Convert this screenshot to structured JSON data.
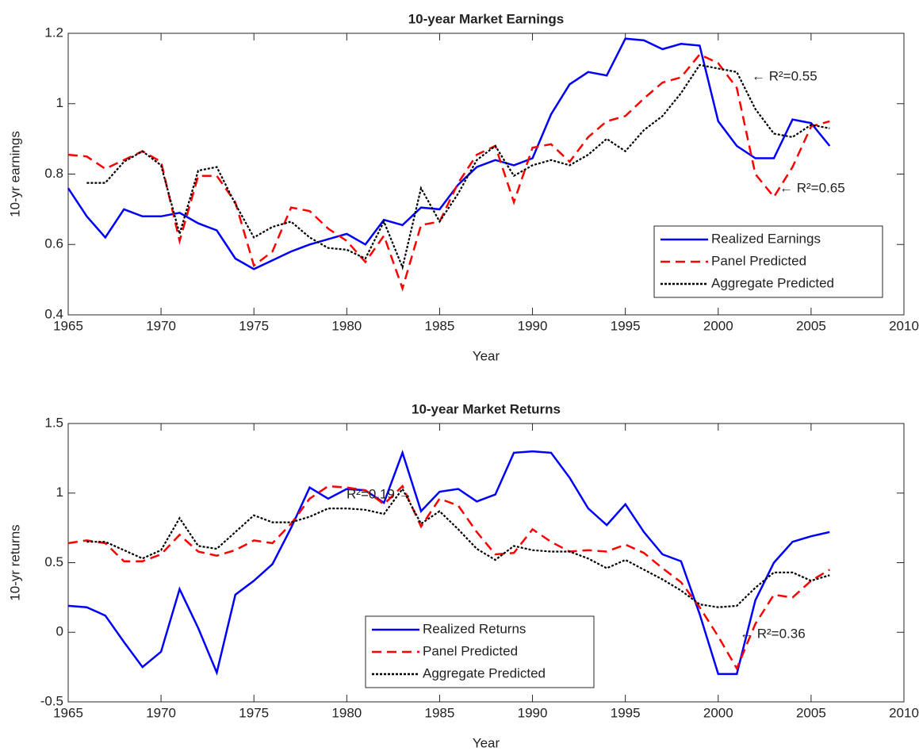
{
  "chart_data": [
    {
      "type": "line",
      "title": "10-year Market Earnings",
      "x_label": "Year",
      "y_label": "10-yr earnings",
      "x": [
        1965,
        1966,
        1967,
        1968,
        1969,
        1970,
        1971,
        1972,
        1973,
        1974,
        1975,
        1976,
        1977,
        1978,
        1979,
        1980,
        1981,
        1982,
        1983,
        1984,
        1985,
        1986,
        1987,
        1988,
        1989,
        1990,
        1991,
        1992,
        1993,
        1994,
        1995,
        1996,
        1997,
        1998,
        1999,
        2000,
        2001,
        2002,
        2003,
        2004,
        2005,
        2006
      ],
      "series": [
        {
          "name": "Realized Earnings",
          "color": "#0000ff",
          "line_style": "solid",
          "values": [
            0.76,
            0.68,
            0.62,
            0.7,
            0.68,
            0.68,
            0.69,
            0.66,
            0.64,
            0.56,
            0.53,
            0.555,
            0.58,
            0.6,
            0.615,
            0.63,
            0.6,
            0.67,
            0.655,
            0.705,
            0.7,
            0.77,
            0.82,
            0.84,
            0.825,
            0.845,
            0.97,
            1.055,
            1.09,
            1.08,
            1.185,
            1.18,
            1.155,
            1.17,
            1.165,
            0.95,
            0.88,
            0.845,
            0.845,
            0.955,
            0.945,
            0.88
          ]
        },
        {
          "name": "Panel Predicted",
          "color": "#ff0000",
          "line_style": "dashed",
          "values": [
            0.855,
            0.85,
            0.815,
            0.84,
            0.865,
            0.835,
            0.61,
            0.795,
            0.795,
            0.72,
            0.54,
            0.58,
            0.705,
            0.695,
            0.645,
            0.61,
            0.55,
            0.625,
            0.475,
            0.655,
            0.665,
            0.775,
            0.855,
            0.88,
            0.72,
            0.875,
            0.885,
            0.835,
            0.905,
            0.95,
            0.965,
            1.015,
            1.06,
            1.075,
            1.14,
            1.115,
            1.045,
            0.8,
            0.735,
            0.82,
            0.935,
            0.95
          ]
        },
        {
          "name": "Aggregate Predicted",
          "color": "#000000",
          "line_style": "dotted",
          "values": [
            null,
            0.775,
            0.775,
            0.835,
            0.865,
            0.825,
            0.63,
            0.81,
            0.82,
            0.715,
            0.62,
            0.65,
            0.665,
            0.62,
            0.59,
            0.585,
            0.56,
            0.665,
            0.535,
            0.76,
            0.665,
            0.745,
            0.84,
            0.88,
            0.795,
            0.825,
            0.84,
            0.825,
            0.855,
            0.9,
            0.865,
            0.925,
            0.965,
            1.03,
            1.11,
            1.1,
            1.09,
            0.985,
            0.915,
            0.905,
            0.94,
            0.93
          ]
        }
      ],
      "xlim": [
        1965,
        2010
      ],
      "xticks": [
        1965,
        1970,
        1975,
        1980,
        1985,
        1990,
        1995,
        2000,
        2005,
        2010
      ],
      "ylim": [
        0.4,
        1.2
      ],
      "yticks": [
        0.4,
        0.6,
        0.8,
        1,
        1.2
      ],
      "legend": "lower right",
      "annotations": [
        "← R²=0.55",
        "← R²=0.65"
      ]
    },
    {
      "type": "line",
      "title": "10-year Market Returns",
      "x_label": "Year",
      "y_label": "10-yr returns",
      "x": [
        1965,
        1966,
        1967,
        1968,
        1969,
        1970,
        1971,
        1972,
        1973,
        1974,
        1975,
        1976,
        1977,
        1978,
        1979,
        1980,
        1981,
        1982,
        1983,
        1984,
        1985,
        1986,
        1987,
        1988,
        1989,
        1990,
        1991,
        1992,
        1993,
        1994,
        1995,
        1996,
        1997,
        1998,
        1999,
        2000,
        2001,
        2002,
        2003,
        2004,
        2005,
        2006
      ],
      "series": [
        {
          "name": "Realized Returns",
          "color": "#0000ff",
          "line_style": "solid",
          "values": [
            0.19,
            0.18,
            0.12,
            -0.07,
            -0.25,
            -0.14,
            0.31,
            0.03,
            -0.29,
            0.27,
            0.37,
            0.49,
            0.75,
            1.04,
            0.96,
            1.03,
            1.02,
            0.93,
            1.29,
            0.87,
            1.01,
            1.03,
            0.94,
            0.99,
            1.29,
            1.3,
            1.29,
            1.11,
            0.89,
            0.77,
            0.92,
            0.72,
            0.56,
            0.51,
            0.13,
            -0.3,
            -0.3,
            0.23,
            0.5,
            0.65,
            0.69,
            0.72
          ]
        },
        {
          "name": "Panel Predicted",
          "color": "#ff0000",
          "line_style": "dashed",
          "values": [
            0.64,
            0.66,
            0.64,
            0.51,
            0.51,
            0.56,
            0.7,
            0.58,
            0.55,
            0.59,
            0.66,
            0.64,
            0.78,
            0.96,
            1.05,
            1.04,
            1.02,
            0.92,
            1.05,
            0.76,
            0.96,
            0.91,
            0.72,
            0.56,
            0.57,
            0.74,
            0.65,
            0.58,
            0.59,
            0.58,
            0.63,
            0.57,
            0.46,
            0.36,
            0.18,
            -0.03,
            -0.26,
            0.06,
            0.27,
            0.25,
            0.37,
            0.45
          ]
        },
        {
          "name": "Aggregate Predicted",
          "color": "#000000",
          "line_style": "dotted",
          "values": [
            null,
            0.65,
            0.65,
            0.59,
            0.53,
            0.59,
            0.82,
            0.62,
            0.6,
            0.72,
            0.84,
            0.79,
            0.79,
            0.83,
            0.89,
            0.89,
            0.88,
            0.85,
            1.03,
            0.78,
            0.87,
            0.74,
            0.6,
            0.52,
            0.62,
            0.59,
            0.58,
            0.58,
            0.53,
            0.46,
            0.52,
            0.45,
            0.38,
            0.3,
            0.2,
            0.18,
            0.19,
            0.32,
            0.43,
            0.43,
            0.37,
            0.41
          ]
        }
      ],
      "xlim": [
        1965,
        2010
      ],
      "xticks": [
        1965,
        1970,
        1975,
        1980,
        1985,
        1990,
        1995,
        2000,
        2005,
        2010
      ],
      "ylim": [
        -0.5,
        1.5
      ],
      "yticks": [
        -0.5,
        0,
        0.5,
        1,
        1.5
      ],
      "legend": "lower center",
      "annotations": [
        "R²=0.19 →",
        "← R²=0.36"
      ]
    }
  ]
}
